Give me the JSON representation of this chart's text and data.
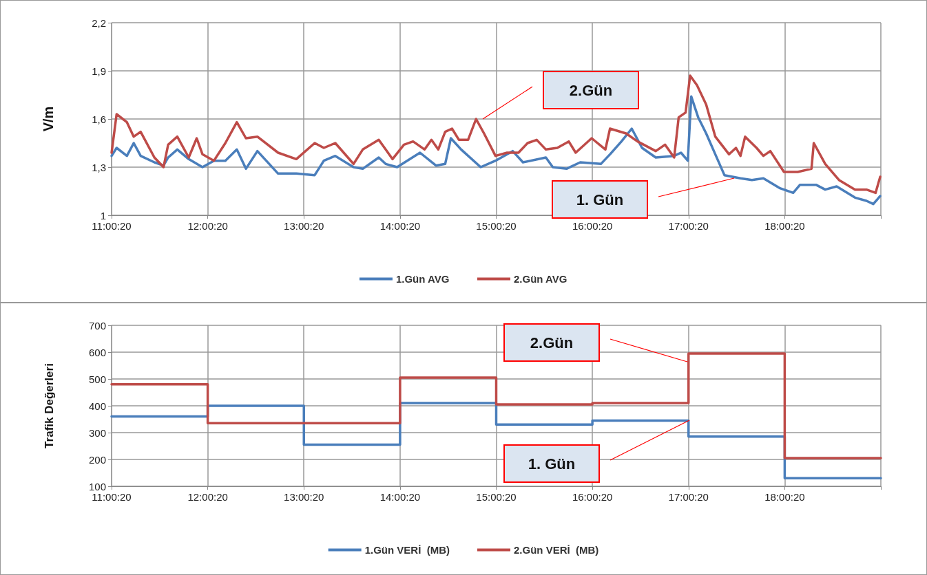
{
  "chart_data": [
    {
      "type": "line",
      "ylabel": "V/m",
      "xlim": [
        11.0056,
        19.0056
      ],
      "xticks": [
        {
          "value": 11.0056,
          "label": "11:00:20"
        },
        {
          "value": 12.0056,
          "label": "12:00:20"
        },
        {
          "value": 13.0056,
          "label": "13:00:20"
        },
        {
          "value": 14.0056,
          "label": "14:00:20"
        },
        {
          "value": 15.0056,
          "label": "15:00:20"
        },
        {
          "value": 16.0056,
          "label": "16:00:20"
        },
        {
          "value": 17.0056,
          "label": "17:00:20"
        },
        {
          "value": 18.0056,
          "label": "18:00:20"
        },
        {
          "value": 19.0056,
          "label": null
        }
      ],
      "ylim": [
        1,
        2.2
      ],
      "yticks": [
        1,
        {
          "value": 1.3,
          "label": "1,3"
        },
        {
          "value": 1.6,
          "label": "1,6"
        },
        {
          "value": 1.9,
          "label": "1,9"
        },
        {
          "value": 2.2,
          "label": "2,2"
        }
      ],
      "grid": true,
      "legend": "bottom",
      "marker": "none",
      "line_style": "solid",
      "annotations": [
        "2.Gün",
        "1. Gün"
      ],
      "series": [
        {
          "name": "1.Gün AVG",
          "color": "#4a7ebb",
          "x": [
            11.006,
            11.058,
            11.165,
            11.236,
            11.308,
            11.451,
            11.546,
            11.594,
            11.689,
            11.808,
            11.951,
            12.07,
            12.189,
            12.308,
            12.403,
            12.522,
            12.737,
            12.927,
            13.118,
            13.213,
            13.332,
            13.522,
            13.618,
            13.784,
            13.856,
            13.975,
            14.213,
            14.379,
            14.475,
            14.534,
            14.641,
            14.844,
            14.998,
            15.177,
            15.284,
            15.522,
            15.594,
            15.737,
            15.879,
            16.094,
            16.189,
            16.308,
            16.415,
            16.522,
            16.665,
            16.856,
            16.927,
            16.998,
            17.034,
            17.106,
            17.189,
            17.284,
            17.379,
            17.546,
            17.665,
            17.784,
            17.951,
            18.094,
            18.165,
            18.331,
            18.427,
            18.546,
            18.737,
            18.856,
            18.927,
            18.999
          ],
          "values": [
            1.37,
            1.42,
            1.37,
            1.45,
            1.37,
            1.33,
            1.31,
            1.36,
            1.41,
            1.35,
            1.3,
            1.34,
            1.34,
            1.41,
            1.29,
            1.4,
            1.26,
            1.26,
            1.25,
            1.34,
            1.37,
            1.3,
            1.29,
            1.36,
            1.32,
            1.3,
            1.39,
            1.31,
            1.32,
            1.48,
            1.41,
            1.3,
            1.34,
            1.4,
            1.33,
            1.36,
            1.3,
            1.29,
            1.33,
            1.32,
            1.38,
            1.46,
            1.54,
            1.42,
            1.36,
            1.37,
            1.39,
            1.34,
            1.74,
            1.61,
            1.51,
            1.38,
            1.25,
            1.23,
            1.22,
            1.23,
            1.17,
            1.14,
            1.19,
            1.19,
            1.16,
            1.18,
            1.11,
            1.09,
            1.07,
            1.12
          ]
        },
        {
          "name": "2.Gün AVG",
          "color": "#be4b48",
          "x": [
            11.006,
            11.058,
            11.165,
            11.236,
            11.308,
            11.451,
            11.546,
            11.594,
            11.689,
            11.808,
            11.891,
            11.951,
            12.07,
            12.189,
            12.308,
            12.403,
            12.522,
            12.737,
            12.927,
            13.118,
            13.213,
            13.332,
            13.522,
            13.618,
            13.784,
            13.856,
            13.927,
            14.046,
            14.141,
            14.261,
            14.332,
            14.403,
            14.475,
            14.546,
            14.618,
            14.713,
            14.796,
            14.879,
            14.998,
            15.118,
            15.237,
            15.332,
            15.427,
            15.522,
            15.641,
            15.76,
            15.832,
            15.998,
            16.141,
            16.189,
            16.356,
            16.475,
            16.665,
            16.761,
            16.856,
            16.903,
            16.975,
            17.022,
            17.094,
            17.189,
            17.284,
            17.427,
            17.499,
            17.546,
            17.594,
            17.713,
            17.784,
            17.856,
            17.998,
            18.141,
            18.284,
            18.308,
            18.427,
            18.57,
            18.737,
            18.856,
            18.951,
            18.999
          ],
          "values": [
            1.39,
            1.63,
            1.58,
            1.49,
            1.52,
            1.36,
            1.3,
            1.44,
            1.49,
            1.36,
            1.48,
            1.38,
            1.34,
            1.45,
            1.58,
            1.48,
            1.49,
            1.39,
            1.35,
            1.45,
            1.42,
            1.45,
            1.32,
            1.41,
            1.47,
            1.41,
            1.35,
            1.44,
            1.46,
            1.41,
            1.47,
            1.41,
            1.52,
            1.54,
            1.47,
            1.47,
            1.6,
            1.51,
            1.37,
            1.39,
            1.39,
            1.45,
            1.47,
            1.41,
            1.42,
            1.46,
            1.39,
            1.48,
            1.41,
            1.54,
            1.51,
            1.46,
            1.4,
            1.44,
            1.36,
            1.61,
            1.64,
            1.87,
            1.81,
            1.69,
            1.49,
            1.38,
            1.42,
            1.37,
            1.49,
            1.42,
            1.37,
            1.4,
            1.27,
            1.27,
            1.29,
            1.45,
            1.32,
            1.22,
            1.16,
            1.16,
            1.14,
            1.24
          ]
        }
      ]
    },
    {
      "type": "step",
      "ylabel": "Trafik Değerleri",
      "x": [
        11.0056,
        12.0056,
        13.0056,
        14.0056,
        15.0056,
        16.0056,
        17.0056,
        18.0056,
        19.0056
      ],
      "xlim": [
        11.0056,
        19.0056
      ],
      "xticks": [
        {
          "value": 11.0056,
          "label": "11:00:20"
        },
        {
          "value": 12.0056,
          "label": "12:00:20"
        },
        {
          "value": 13.0056,
          "label": "13:00:20"
        },
        {
          "value": 14.0056,
          "label": "14:00:20"
        },
        {
          "value": 15.0056,
          "label": "15:00:20"
        },
        {
          "value": 16.0056,
          "label": "16:00:20"
        },
        {
          "value": 17.0056,
          "label": "17:00:20"
        },
        {
          "value": 18.0056,
          "label": "18:00:20"
        },
        {
          "value": 19.0056,
          "label": null
        }
      ],
      "ylim": [
        100,
        700
      ],
      "yticks": [
        100,
        200,
        300,
        400,
        500,
        600,
        700
      ],
      "grid": true,
      "legend": "bottom",
      "marker": "none",
      "line_style": "solid",
      "annotations": [
        "2.Gün",
        "1. Gün"
      ],
      "series": [
        {
          "name": "1.Gün VERİ  (MB)",
          "color": "#4a7ebb",
          "values": [
            360,
            400,
            255,
            410,
            330,
            345,
            285,
            130,
            130
          ]
        },
        {
          "name": "2.Gün VERİ  (MB)",
          "color": "#be4b48",
          "values": [
            480,
            335,
            335,
            505,
            405,
            410,
            595,
            205,
            205
          ]
        }
      ]
    }
  ]
}
